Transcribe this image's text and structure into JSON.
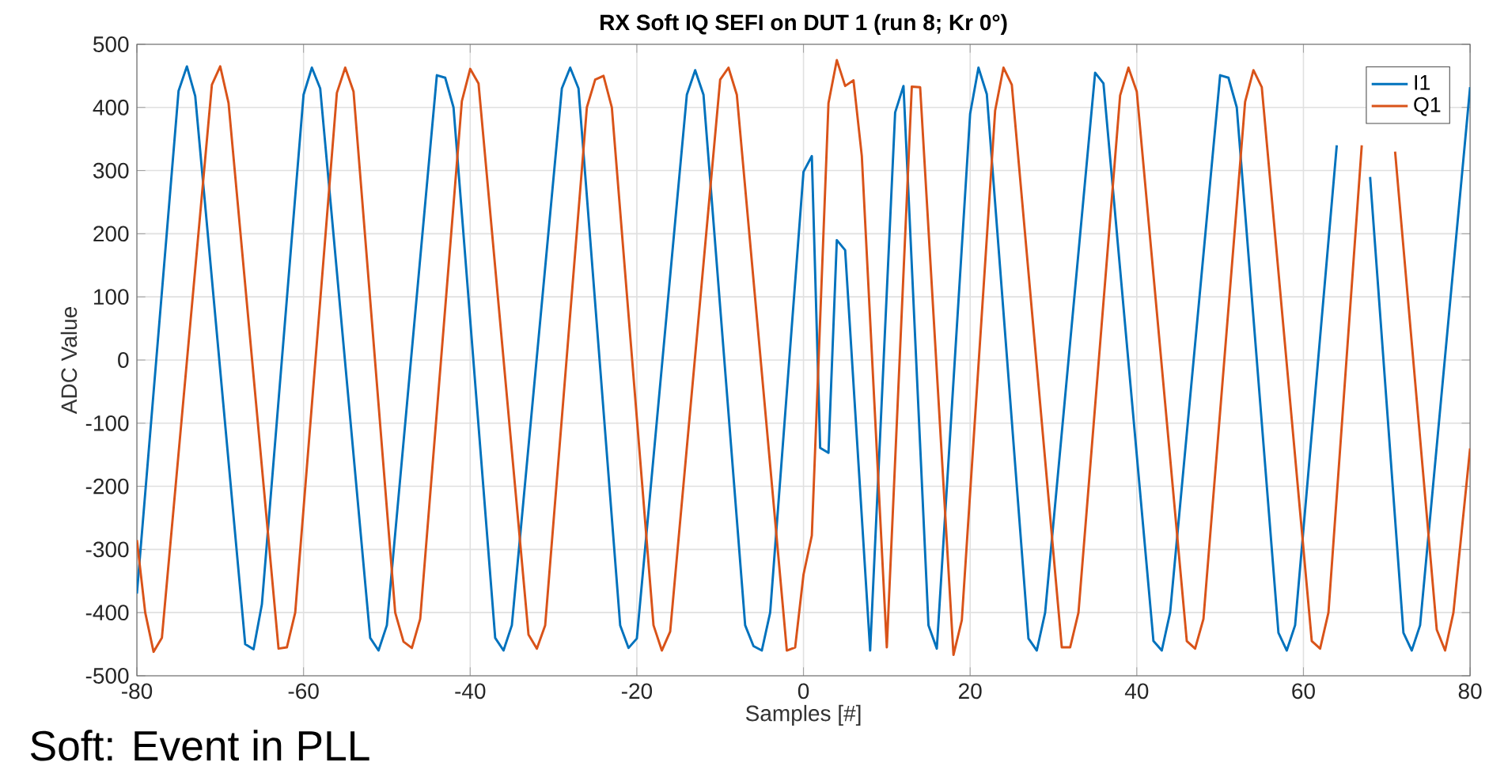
{
  "chart_data": {
    "type": "line",
    "title": "RX Soft IQ SEFI on DUT 1 (run 8; Kr 0°)",
    "xlabel": "Samples [#]",
    "ylabel": "ADC Value",
    "annotations": [
      "Soft: Event in PLL"
    ],
    "xlim": [
      -80,
      80
    ],
    "xticks": [
      -80,
      -60,
      -40,
      -20,
      0,
      20,
      40,
      60,
      80
    ],
    "ylim": [
      -500,
      500
    ],
    "yticks": [
      -500,
      -400,
      -300,
      -200,
      -100,
      0,
      100,
      200,
      300,
      400,
      500
    ],
    "grid": true,
    "legend": "top right",
    "series": [
      {
        "name": "I1",
        "color": "#0072bd",
        "x": [
          -80,
          -75,
          -74,
          -73,
          -67,
          -66,
          -65,
          -60,
          -59,
          -58,
          -52,
          -51,
          -50,
          -44,
          -43,
          -42,
          -37,
          -36,
          -35,
          -29,
          -28,
          -27,
          -22,
          -21,
          -20,
          -14,
          -13,
          -12,
          -7,
          -6,
          -5,
          -4,
          0,
          1,
          2,
          3,
          4,
          5,
          8,
          11,
          12,
          15,
          16,
          20,
          21,
          22,
          27,
          28,
          29,
          35,
          36,
          42,
          43,
          44,
          50,
          51,
          52,
          57,
          58,
          59,
          64,
          65,
          66,
          67,
          68,
          72,
          73,
          74,
          80
        ],
        "values": [
          -370,
          426,
          465,
          418,
          -450,
          -458,
          -387,
          420,
          463,
          430,
          -440,
          -460,
          -420,
          451,
          447,
          400,
          -440,
          -460,
          -420,
          430,
          463,
          430,
          -420,
          -456,
          -441,
          420,
          459,
          420,
          -420,
          -453,
          -460,
          -400,
          298,
          323,
          -139,
          -147,
          190,
          174,
          -460,
          392,
          434,
          -420,
          -457,
          390,
          463,
          421,
          -441,
          -460,
          -400,
          455,
          438,
          -445,
          -460,
          -400,
          451,
          447,
          400,
          -432,
          -460,
          -420,
          340,
          null,
          null,
          null,
          290,
          -432,
          -460,
          -420,
          432
        ]
      },
      {
        "name": "Q1",
        "color": "#d95319",
        "x": [
          -80,
          -79,
          -78,
          -77,
          -71,
          -70,
          -69,
          -63,
          -62,
          -61,
          -56,
          -55,
          -54,
          -49,
          -48,
          -47,
          -46,
          -41,
          -40,
          -39,
          -33,
          -32,
          -31,
          -26,
          -25,
          -24,
          -23,
          -18,
          -17,
          -16,
          -10,
          -9,
          -8,
          -2,
          -1,
          0,
          1,
          3,
          4,
          5,
          6,
          7,
          10,
          13,
          14,
          18,
          19,
          23,
          24,
          25,
          31,
          32,
          33,
          38,
          39,
          40,
          46,
          47,
          48,
          53,
          54,
          55,
          61,
          62,
          63,
          67,
          68,
          69,
          70,
          71,
          76,
          77,
          78,
          80
        ],
        "values": [
          -285,
          -400,
          -462,
          -440,
          436,
          465,
          407,
          -457,
          -455,
          -400,
          423,
          463,
          425,
          -400,
          -446,
          -456,
          -410,
          410,
          461,
          438,
          -435,
          -457,
          -420,
          400,
          444,
          450,
          400,
          -420,
          -460,
          -430,
          444,
          463,
          420,
          -460,
          -455,
          -340,
          -278,
          407,
          475,
          434,
          443,
          323,
          -455,
          433,
          432,
          -467,
          -412,
          395,
          463,
          436,
          -455,
          -455,
          -400,
          419,
          463,
          425,
          -445,
          -457,
          -410,
          409,
          459,
          432,
          -445,
          -457,
          -400,
          340,
          null,
          null,
          null,
          330,
          -427,
          -460,
          -400,
          -140
        ]
      }
    ]
  }
}
